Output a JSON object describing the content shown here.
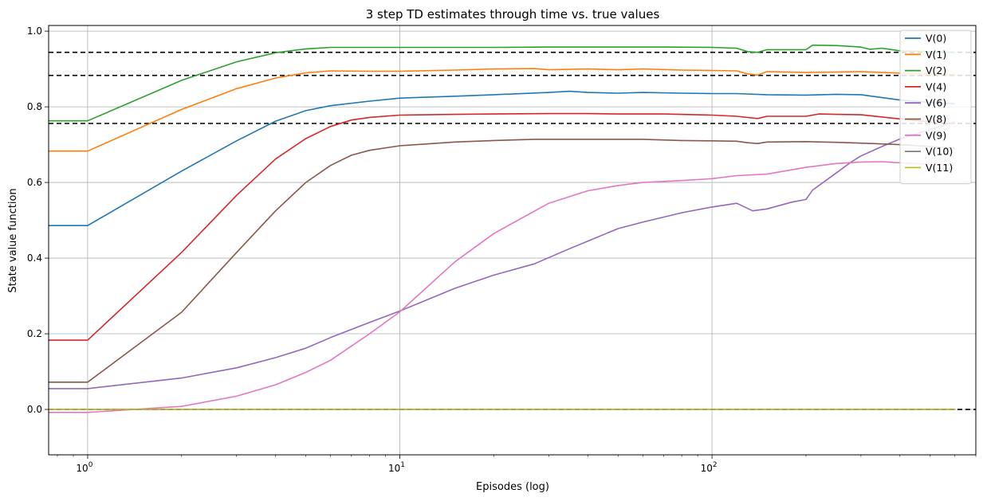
{
  "chart_data": {
    "type": "line",
    "title": "3 step TD estimates through time vs. true values",
    "xlabel": "Episodes (log)",
    "ylabel": "State value function",
    "xscale": "log",
    "xlim": [
      0.75,
      700
    ],
    "ylim": [
      -0.12,
      1.015
    ],
    "x_ticks": [
      {
        "value": 1,
        "base": "10",
        "exp": "0"
      },
      {
        "value": 10,
        "base": "10",
        "exp": "1"
      },
      {
        "value": 100,
        "base": "10",
        "exp": "2"
      }
    ],
    "y_ticks": [
      {
        "value": 0.0,
        "label": "0.0"
      },
      {
        "value": 0.2,
        "label": "0.2"
      },
      {
        "value": 0.4,
        "label": "0.4"
      },
      {
        "value": 0.6,
        "label": "0.6"
      },
      {
        "value": 0.8,
        "label": "0.8"
      },
      {
        "value": 1.0,
        "label": "1.0"
      }
    ],
    "grid": true,
    "legend_position": "top-right",
    "true_values": [
      0.944,
      0.883,
      0.756,
      0.0
    ],
    "true_value_color": "#000000",
    "series": [
      {
        "name": "V(0)",
        "color": "#1f77b4",
        "x": [
          0.75,
          1,
          2,
          3,
          4,
          5,
          6,
          8,
          10,
          15,
          20,
          30,
          35,
          40,
          50,
          60,
          80,
          100,
          120,
          150,
          200,
          250,
          300,
          400,
          500,
          600
        ],
        "y": [
          0.486,
          0.486,
          0.63,
          0.71,
          0.762,
          0.79,
          0.803,
          0.815,
          0.823,
          0.828,
          0.832,
          0.838,
          0.841,
          0.838,
          0.836,
          0.838,
          0.836,
          0.835,
          0.835,
          0.832,
          0.831,
          0.833,
          0.832,
          0.818,
          0.812,
          0.808
        ]
      },
      {
        "name": "V(1)",
        "color": "#ff7f0e",
        "x": [
          0.75,
          1,
          2,
          3,
          4,
          5,
          6,
          8,
          10,
          15,
          20,
          27,
          30,
          40,
          50,
          60,
          80,
          100,
          120,
          130,
          140,
          150,
          200,
          250,
          300,
          400,
          500,
          600
        ],
        "y": [
          0.683,
          0.683,
          0.793,
          0.848,
          0.876,
          0.89,
          0.895,
          0.894,
          0.894,
          0.897,
          0.9,
          0.901,
          0.898,
          0.9,
          0.898,
          0.9,
          0.897,
          0.896,
          0.895,
          0.887,
          0.884,
          0.893,
          0.891,
          0.892,
          0.893,
          0.889,
          0.887,
          0.885
        ]
      },
      {
        "name": "V(2)",
        "color": "#2ca02c",
        "x": [
          0.75,
          1,
          2,
          3,
          4,
          5,
          6,
          8,
          10,
          20,
          30,
          50,
          70,
          100,
          120,
          130,
          140,
          150,
          200,
          210,
          250,
          300,
          320,
          350,
          400,
          500,
          600
        ],
        "y": [
          0.763,
          0.763,
          0.87,
          0.919,
          0.943,
          0.953,
          0.957,
          0.957,
          0.957,
          0.957,
          0.958,
          0.958,
          0.958,
          0.957,
          0.955,
          0.946,
          0.944,
          0.951,
          0.951,
          0.963,
          0.962,
          0.958,
          0.952,
          0.955,
          0.948,
          0.946,
          0.944
        ]
      },
      {
        "name": "V(4)",
        "color": "#d62728",
        "x": [
          0.75,
          1,
          2,
          3,
          4,
          5,
          6,
          7,
          8,
          10,
          15,
          20,
          30,
          40,
          50,
          70,
          100,
          120,
          140,
          150,
          200,
          220,
          250,
          300,
          400,
          500,
          600
        ],
        "y": [
          0.183,
          0.183,
          0.415,
          0.566,
          0.662,
          0.716,
          0.748,
          0.765,
          0.772,
          0.778,
          0.78,
          0.781,
          0.782,
          0.782,
          0.781,
          0.781,
          0.778,
          0.775,
          0.769,
          0.775,
          0.775,
          0.781,
          0.78,
          0.779,
          0.768,
          0.76,
          0.756
        ]
      },
      {
        "name": "V(6)",
        "color": "#9467bd",
        "x": [
          0.75,
          1,
          2,
          3,
          4,
          5,
          6,
          8,
          10,
          15,
          20,
          27,
          35,
          40,
          50,
          60,
          80,
          100,
          120,
          135,
          150,
          180,
          200,
          210,
          250,
          280,
          300,
          350,
          400,
          500,
          600
        ],
        "y": [
          0.055,
          0.055,
          0.083,
          0.11,
          0.137,
          0.162,
          0.19,
          0.23,
          0.26,
          0.32,
          0.355,
          0.385,
          0.425,
          0.445,
          0.478,
          0.495,
          0.52,
          0.535,
          0.545,
          0.525,
          0.53,
          0.548,
          0.555,
          0.58,
          0.625,
          0.655,
          0.67,
          0.695,
          0.715,
          0.74,
          0.76
        ]
      },
      {
        "name": "V(8)",
        "color": "#8c564b",
        "x": [
          0.75,
          1,
          2,
          3,
          4,
          5,
          6,
          7,
          8,
          10,
          15,
          20,
          27,
          40,
          60,
          80,
          100,
          120,
          130,
          140,
          150,
          200,
          250,
          300,
          400,
          500,
          600
        ],
        "y": [
          0.072,
          0.072,
          0.257,
          0.415,
          0.525,
          0.6,
          0.645,
          0.672,
          0.685,
          0.697,
          0.707,
          0.711,
          0.714,
          0.714,
          0.714,
          0.711,
          0.71,
          0.709,
          0.705,
          0.703,
          0.707,
          0.708,
          0.706,
          0.704,
          0.7,
          0.695,
          0.69
        ]
      },
      {
        "name": "V(9)",
        "color": "#e377c2",
        "x": [
          0.75,
          1,
          2,
          3,
          4,
          5,
          6,
          8,
          10,
          15,
          20,
          30,
          40,
          50,
          60,
          80,
          100,
          120,
          150,
          200,
          250,
          300,
          350,
          400,
          500,
          600
        ],
        "y": [
          -0.008,
          -0.008,
          0.008,
          0.035,
          0.065,
          0.098,
          0.13,
          0.2,
          0.258,
          0.39,
          0.465,
          0.545,
          0.578,
          0.592,
          0.6,
          0.605,
          0.61,
          0.618,
          0.622,
          0.64,
          0.65,
          0.654,
          0.655,
          0.652,
          0.648,
          0.645
        ]
      },
      {
        "name": "V(10)",
        "color": "#7f7f7f",
        "x": [
          0.75,
          600
        ],
        "y": [
          0.0,
          0.0
        ]
      },
      {
        "name": "V(11)",
        "color": "#bcbd22",
        "x": [
          0.75,
          600
        ],
        "y": [
          0.0,
          0.0
        ]
      }
    ]
  }
}
